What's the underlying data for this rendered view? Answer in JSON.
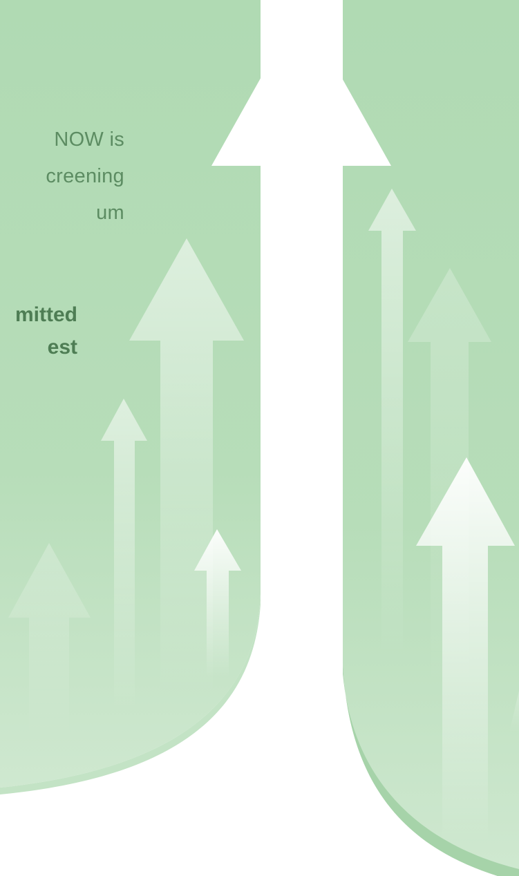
{
  "colors": {
    "background_green": "#b0dab3",
    "light_green": "#c8e6c9",
    "curve_shadow": "#a6d3a9",
    "white": "#ffffff",
    "text_green": "#5c8c62",
    "text_green_bold": "#4e7d54"
  },
  "intro_lines": [
    "NOW is",
    "creening",
    "um"
  ],
  "emphasis_lines": [
    "mitted",
    "est"
  ],
  "decor": {
    "main_arrow": "upward-arrow-icon",
    "secondary_arrows": "upward-arrow-icon"
  }
}
